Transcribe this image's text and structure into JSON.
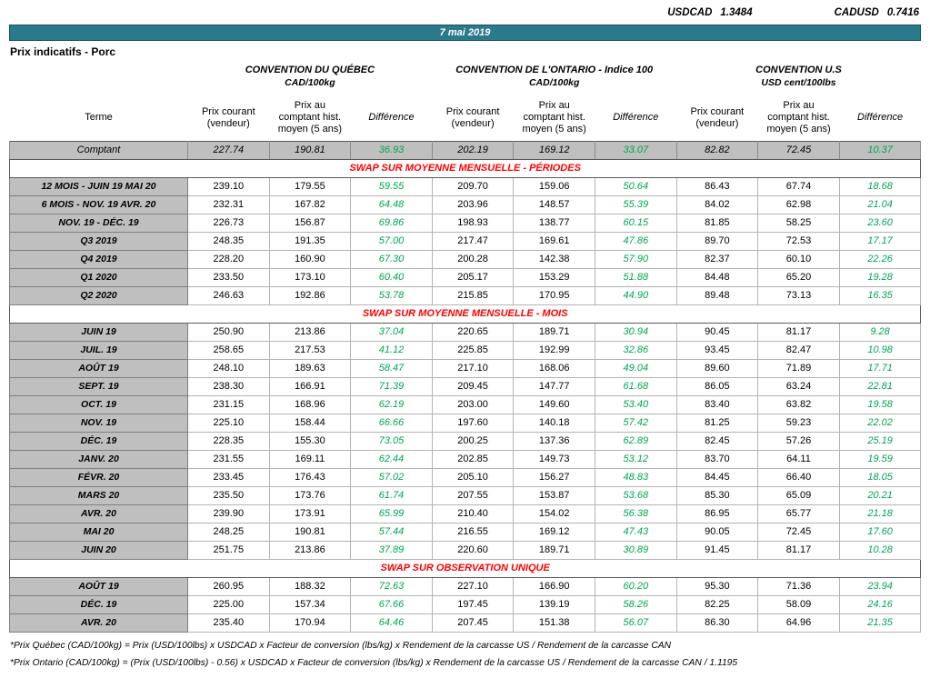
{
  "fx": {
    "pairs": [
      {
        "label": "USDCAD",
        "value": "1.3484"
      },
      {
        "label": "CADUSD",
        "value": "0.7416"
      }
    ]
  },
  "date_bar": "7 mai 2019",
  "title": "Prix indicatifs - Porc",
  "groups": [
    {
      "title": "CONVENTION DU QUÉBEC",
      "unit": "CAD/100kg"
    },
    {
      "title": "CONVENTION DE L'ONTARIO - Indice 100",
      "unit": "CAD/100kg"
    },
    {
      "title": "CONVENTION U.S",
      "unit": "USD cent/100lbs"
    }
  ],
  "columns": {
    "terme": "Terme",
    "current": "Prix courant (vendeur)",
    "hist": "Prix au comptant hist. moyen (5 ans)",
    "diff": "Différence"
  },
  "comptant_row": {
    "terme": "Comptant",
    "values": [
      "227.74",
      "190.81",
      "36.93",
      "202.19",
      "169.12",
      "33.07",
      "82.82",
      "72.45",
      "10.37"
    ]
  },
  "sections": [
    {
      "header": "SWAP SUR MOYENNE MENSUELLE - PÉRIODES",
      "rows": [
        {
          "terme": "12 MOIS - JUIN 19 MAI 20",
          "values": [
            "239.10",
            "179.55",
            "59.55",
            "209.70",
            "159.06",
            "50.64",
            "86.43",
            "67.74",
            "18.68"
          ]
        },
        {
          "terme": "6 MOIS - NOV. 19 AVR. 20",
          "values": [
            "232.31",
            "167.82",
            "64.48",
            "203.96",
            "148.57",
            "55.39",
            "84.02",
            "62.98",
            "21.04"
          ]
        },
        {
          "terme": "NOV. 19 - DÉC. 19",
          "values": [
            "226.73",
            "156.87",
            "69.86",
            "198.93",
            "138.77",
            "60.15",
            "81.85",
            "58.25",
            "23.60"
          ]
        },
        {
          "terme": "Q3 2019",
          "values": [
            "248.35",
            "191.35",
            "57.00",
            "217.47",
            "169.61",
            "47.86",
            "89.70",
            "72.53",
            "17.17"
          ]
        },
        {
          "terme": "Q4 2019",
          "values": [
            "228.20",
            "160.90",
            "67.30",
            "200.28",
            "142.38",
            "57.90",
            "82.37",
            "60.10",
            "22.26"
          ]
        },
        {
          "terme": "Q1 2020",
          "values": [
            "233.50",
            "173.10",
            "60.40",
            "205.17",
            "153.29",
            "51.88",
            "84.48",
            "65.20",
            "19.28"
          ]
        },
        {
          "terme": "Q2 2020",
          "values": [
            "246.63",
            "192.86",
            "53.78",
            "215.85",
            "170.95",
            "44.90",
            "89.48",
            "73.13",
            "16.35"
          ]
        }
      ]
    },
    {
      "header": "SWAP SUR MOYENNE MENSUELLE - MOIS",
      "rows": [
        {
          "terme": "JUIN 19",
          "values": [
            "250.90",
            "213.86",
            "37.04",
            "220.65",
            "189.71",
            "30.94",
            "90.45",
            "81.17",
            "9.28"
          ]
        },
        {
          "terme": "JUIL. 19",
          "values": [
            "258.65",
            "217.53",
            "41.12",
            "225.85",
            "192.99",
            "32.86",
            "93.45",
            "82.47",
            "10.98"
          ]
        },
        {
          "terme": "AOÛT 19",
          "values": [
            "248.10",
            "189.63",
            "58.47",
            "217.10",
            "168.06",
            "49.04",
            "89.60",
            "71.89",
            "17.71"
          ]
        },
        {
          "terme": "SEPT. 19",
          "values": [
            "238.30",
            "166.91",
            "71.39",
            "209.45",
            "147.77",
            "61.68",
            "86.05",
            "63.24",
            "22.81"
          ]
        },
        {
          "terme": "OCT. 19",
          "values": [
            "231.15",
            "168.96",
            "62.19",
            "203.00",
            "149.60",
            "53.40",
            "83.40",
            "63.82",
            "19.58"
          ]
        },
        {
          "terme": "NOV. 19",
          "values": [
            "225.10",
            "158.44",
            "66.66",
            "197.60",
            "140.18",
            "57.42",
            "81.25",
            "59.23",
            "22.02"
          ]
        },
        {
          "terme": "DÉC. 19",
          "values": [
            "228.35",
            "155.30",
            "73.05",
            "200.25",
            "137.36",
            "62.89",
            "82.45",
            "57.26",
            "25.19"
          ]
        },
        {
          "terme": "JANV. 20",
          "values": [
            "231.55",
            "169.11",
            "62.44",
            "202.85",
            "149.73",
            "53.12",
            "83.70",
            "64.11",
            "19.59"
          ]
        },
        {
          "terme": "FÉVR. 20",
          "values": [
            "233.45",
            "176.43",
            "57.02",
            "205.10",
            "156.27",
            "48.83",
            "84.45",
            "66.40",
            "18.05"
          ]
        },
        {
          "terme": "MARS 20",
          "values": [
            "235.50",
            "173.76",
            "61.74",
            "207.55",
            "153.87",
            "53.68",
            "85.30",
            "65.09",
            "20.21"
          ]
        },
        {
          "terme": "AVR. 20",
          "values": [
            "239.90",
            "173.91",
            "65.99",
            "210.40",
            "154.02",
            "56.38",
            "86.95",
            "65.77",
            "21.18"
          ]
        },
        {
          "terme": "MAI 20",
          "values": [
            "248.25",
            "190.81",
            "57.44",
            "216.55",
            "169.12",
            "47.43",
            "90.05",
            "72.45",
            "17.60"
          ]
        },
        {
          "terme": "JUIN 20",
          "values": [
            "251.75",
            "213.86",
            "37.89",
            "220.60",
            "189.71",
            "30.89",
            "91.45",
            "81.17",
            "10.28"
          ]
        }
      ]
    },
    {
      "header": "SWAP SUR OBSERVATION UNIQUE",
      "rows": [
        {
          "terme": "AOÛT 19",
          "values": [
            "260.95",
            "188.32",
            "72.63",
            "227.10",
            "166.90",
            "60.20",
            "95.30",
            "71.36",
            "23.94"
          ]
        },
        {
          "terme": "DÉC. 19",
          "values": [
            "225.00",
            "157.34",
            "67.66",
            "197.45",
            "139.19",
            "58.26",
            "82.25",
            "58.09",
            "24.16"
          ]
        },
        {
          "terme": "AVR. 20",
          "values": [
            "235.40",
            "170.94",
            "64.46",
            "207.45",
            "151.38",
            "56.07",
            "86.30",
            "64.96",
            "21.35"
          ]
        }
      ]
    }
  ],
  "footnotes": [
    "*Prix Québec (CAD/100kg) = Prix (USD/100lbs) x USDCAD x Facteur de conversion (lbs/kg) x Rendement de la carcasse US / Rendement de la carcasse CAN",
    "*Prix Ontario (CAD/100kg) = (Prix (USD/100lbs) - 0.56) x USDCAD x Facteur de conversion (lbs/kg) x Rendement de la carcasse US / Rendement de la carcasse CAN / 1.1195"
  ],
  "colors": {
    "header_teal": "#2A7A8C",
    "difference_green": "#00A651",
    "section_red": "#FF0000",
    "row_gray": "#BFBFBF"
  }
}
